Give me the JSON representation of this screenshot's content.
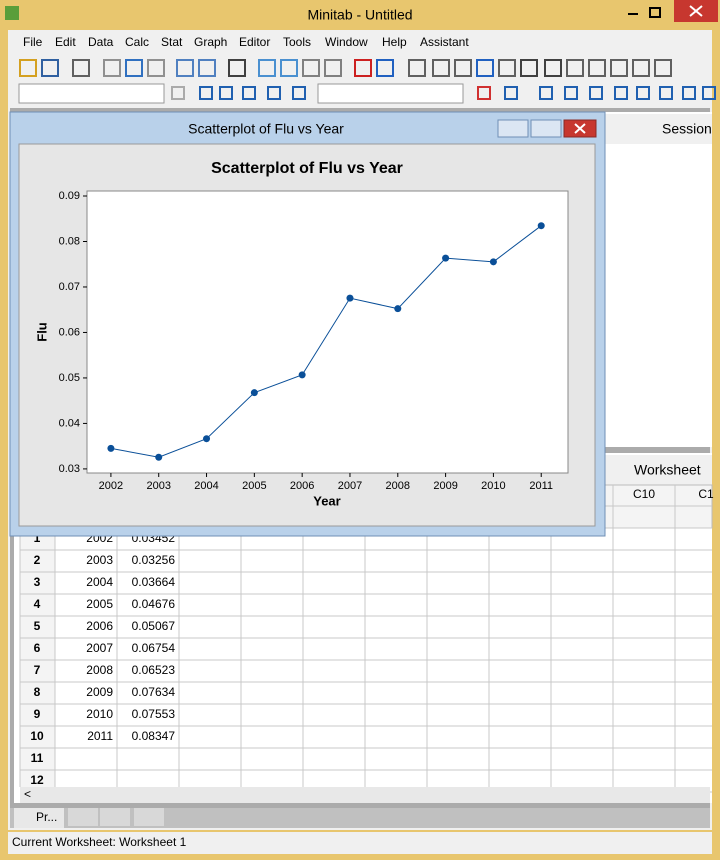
{
  "app_title": "Minitab - Untitled",
  "menu": [
    "File",
    "Edit",
    "Data",
    "Calc",
    "Stat",
    "Graph",
    "Editor",
    "Tools",
    "Window",
    "Help",
    "Assistant"
  ],
  "session_title": "Session",
  "worksheet_title": "Worksheet",
  "plot_window_title": "Scatterplot of Flu vs Year",
  "chart_data": {
    "type": "line",
    "title": "Scatterplot of Flu vs Year",
    "x_label": "Year",
    "y_label": "Flu",
    "x": [
      2002,
      2003,
      2004,
      2005,
      2006,
      2007,
      2008,
      2009,
      2010,
      2011
    ],
    "series": [
      {
        "name": "Flu",
        "color": "#0a4f98",
        "values": [
          0.03452,
          0.03256,
          0.03664,
          0.04676,
          0.05067,
          0.06754,
          0.06523,
          0.07634,
          0.07553,
          0.08347
        ]
      }
    ],
    "xlim": [
      2001.5,
      2011.56
    ],
    "xticks": [
      2002,
      2003,
      2004,
      2005,
      2006,
      2007,
      2008,
      2009,
      2010,
      2011
    ],
    "ylim": [
      0.0291,
      0.0911
    ],
    "yticks": [
      0.03,
      0.04,
      0.05,
      0.06,
      0.07,
      0.08,
      0.09
    ],
    "grid": false
  },
  "worksheet": {
    "columns": [
      "C10",
      "C1"
    ],
    "rows": [
      [
        "1",
        "2002",
        "0.03452"
      ],
      [
        "2",
        "2003",
        "0.03256"
      ],
      [
        "3",
        "2004",
        "0.03664"
      ],
      [
        "4",
        "2005",
        "0.04676"
      ],
      [
        "5",
        "2006",
        "0.05067"
      ],
      [
        "6",
        "2007",
        "0.06754"
      ],
      [
        "7",
        "2008",
        "0.06523"
      ],
      [
        "8",
        "2009",
        "0.07634"
      ],
      [
        "9",
        "2010",
        "0.07553"
      ],
      [
        "10",
        "2011",
        "0.08347"
      ],
      [
        "11",
        "",
        ""
      ],
      [
        "12",
        "",
        ""
      ]
    ]
  },
  "tab_label": "Pr...",
  "scroll_left": "<",
  "status": "Current Worksheet: Worksheet 1"
}
